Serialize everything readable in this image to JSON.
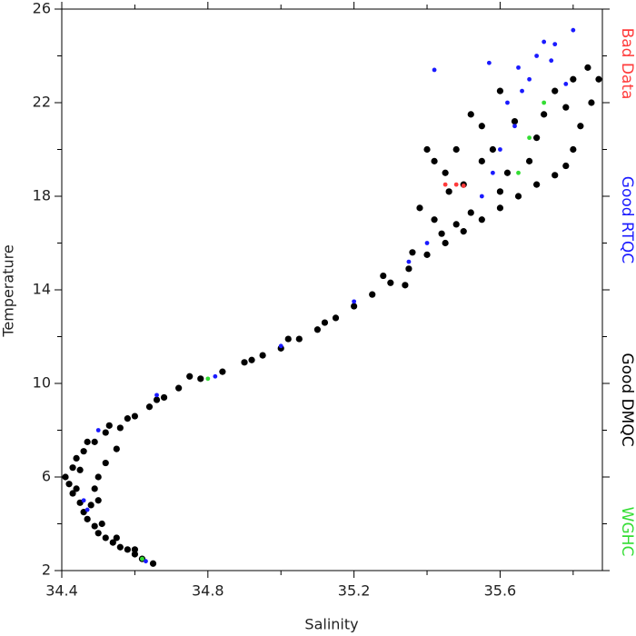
{
  "chart_data": {
    "type": "scatter",
    "x_label": "Salinity",
    "y_label": "Temperature",
    "xlim": [
      34.4,
      35.88
    ],
    "xticks": [
      34.4,
      34.8,
      35.2,
      35.6
    ],
    "xminorticks": [
      34.6,
      35.0,
      35.4,
      35.8
    ],
    "ylim": [
      2,
      26
    ],
    "yticks": [
      2,
      6,
      10,
      14,
      18,
      22,
      26
    ],
    "yminorticks": [
      4,
      8,
      12,
      16,
      20,
      24
    ],
    "legend": "right",
    "series": [
      {
        "name": "Bad Data",
        "color": "#ff3b3b",
        "x": [
          35.45,
          35.48,
          35.5
        ],
        "y": [
          18.5,
          18.5,
          18.45
        ]
      },
      {
        "name": "Good RTQC",
        "color": "#1a1aff",
        "x": [
          35.72,
          35.75,
          35.8,
          35.7,
          35.65,
          35.62,
          35.64,
          35.6,
          35.58,
          35.42,
          35.68,
          35.74,
          35.66,
          35.55,
          35.4,
          35.2,
          35.0,
          34.82,
          34.66,
          34.5,
          34.46,
          34.47,
          34.63,
          35.35,
          35.78,
          35.57
        ],
        "y": [
          24.6,
          24.5,
          25.1,
          24,
          23.5,
          22,
          21,
          20,
          19,
          23.4,
          23,
          23.8,
          22.5,
          18,
          16,
          13.5,
          11.6,
          10.3,
          9.5,
          8,
          5,
          4.6,
          2.4,
          15.2,
          22.8,
          23.7
        ]
      },
      {
        "name": "Good DMQC",
        "color": "#000000",
        "x": [
          34.65,
          34.62,
          34.6,
          34.58,
          34.56,
          34.54,
          34.52,
          34.5,
          34.49,
          34.47,
          34.46,
          34.45,
          34.43,
          34.42,
          34.41,
          34.43,
          34.44,
          34.46,
          34.49,
          34.52,
          34.5,
          34.49,
          34.5,
          34.52,
          34.55,
          34.56,
          34.6,
          34.64,
          34.68,
          34.72,
          34.78,
          34.84,
          34.9,
          34.95,
          35.0,
          35.05,
          35.1,
          35.15,
          35.2,
          35.25,
          35.3,
          35.35,
          35.4,
          35.45,
          35.5,
          35.55,
          35.6,
          35.65,
          35.7,
          35.75,
          35.78,
          35.8,
          35.82,
          35.85,
          35.87,
          35.84,
          35.75,
          35.72,
          35.7,
          35.68,
          35.62,
          35.58,
          35.55,
          35.52,
          35.48,
          35.45,
          35.42,
          35.4,
          35.38,
          35.42,
          35.46,
          35.5,
          35.55,
          35.6,
          35.64,
          35.78,
          35.8,
          35.6,
          35.52,
          35.48,
          35.44,
          35.36,
          35.34,
          35.28,
          35.12,
          35.02,
          34.92,
          34.75,
          34.66,
          34.58,
          34.53,
          34.47,
          34.45,
          34.44,
          34.48,
          34.51,
          34.55,
          34.6
        ],
        "y": [
          2.3,
          2.5,
          2.7,
          2.9,
          3.0,
          3.2,
          3.4,
          3.6,
          3.9,
          4.2,
          4.5,
          4.9,
          5.3,
          5.7,
          6.0,
          6.4,
          6.8,
          7.1,
          7.5,
          7.9,
          5.0,
          5.5,
          6.0,
          6.6,
          7.2,
          8.1,
          8.6,
          9.0,
          9.4,
          9.8,
          10.2,
          10.5,
          10.9,
          11.2,
          11.5,
          11.9,
          12.3,
          12.8,
          13.3,
          13.8,
          14.3,
          14.9,
          15.5,
          16.0,
          16.5,
          17.0,
          17.5,
          18.0,
          18.5,
          18.9,
          19.3,
          20,
          21,
          22,
          23,
          23.5,
          22.5,
          21.5,
          20.5,
          19.5,
          19,
          20,
          21,
          21.5,
          20,
          19,
          19.5,
          20,
          17.5,
          17,
          18.2,
          18.5,
          19.5,
          22.5,
          21.2,
          21.8,
          23,
          18.2,
          17.3,
          16.8,
          16.4,
          15.6,
          14.2,
          14.6,
          12.6,
          11.9,
          11.0,
          10.3,
          9.3,
          8.5,
          8.2,
          7.5,
          6.3,
          5.5,
          4.8,
          4.0,
          3.4,
          2.9
        ]
      },
      {
        "name": "WGHC",
        "color": "#33dd33",
        "x": [
          34.62,
          34.8,
          35.72,
          35.68,
          35.65
        ],
        "y": [
          2.5,
          10.2,
          22,
          20.5,
          19
        ]
      }
    ]
  }
}
